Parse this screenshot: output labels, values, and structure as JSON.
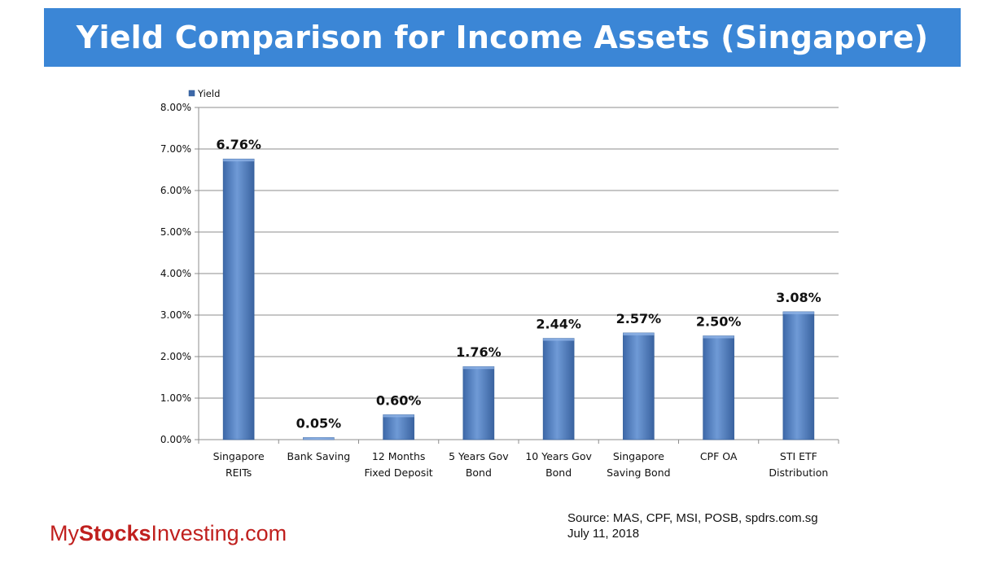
{
  "header": {
    "title": "Yield Comparison for Income Assets (Singapore)"
  },
  "chart_data": {
    "type": "bar",
    "title": "",
    "xlabel": "",
    "ylabel": "",
    "legend": {
      "placement": "top-left",
      "entries": [
        "Yield"
      ]
    },
    "categories": [
      [
        "Singapore",
        "REITs"
      ],
      [
        "Bank Saving"
      ],
      [
        "12 Months",
        "Fixed Deposit"
      ],
      [
        "5 Years Gov",
        "Bond"
      ],
      [
        "10 Years Gov",
        "Bond"
      ],
      [
        "Singapore",
        "Saving Bond"
      ],
      [
        "CPF OA"
      ],
      [
        "STI ETF",
        "Distribution"
      ]
    ],
    "series": [
      {
        "name": "Yield",
        "color": "#4f81bd",
        "values": [
          6.76,
          0.05,
          0.6,
          1.76,
          2.44,
          2.57,
          2.5,
          3.08
        ],
        "data_labels": [
          "6.76%",
          "0.05%",
          "0.60%",
          "1.76%",
          "2.44%",
          "2.57%",
          "2.50%",
          "3.08%"
        ]
      }
    ],
    "ylim": [
      0,
      8
    ],
    "yticks": [
      0,
      1,
      2,
      3,
      4,
      5,
      6,
      7,
      8
    ],
    "ytick_labels": [
      "0.00%",
      "1.00%",
      "2.00%",
      "3.00%",
      "4.00%",
      "5.00%",
      "6.00%",
      "7.00%",
      "8.00%"
    ],
    "grid": true
  },
  "footer": {
    "source_line1": "Source: MAS, CPF, MSI, POSB, spdrs.com.sg",
    "source_line2": "July 11, 2018",
    "brand_part1": "My",
    "brand_part2": "Stocks",
    "brand_part3": "Investing.com",
    "brand_color": "#c0201e"
  }
}
